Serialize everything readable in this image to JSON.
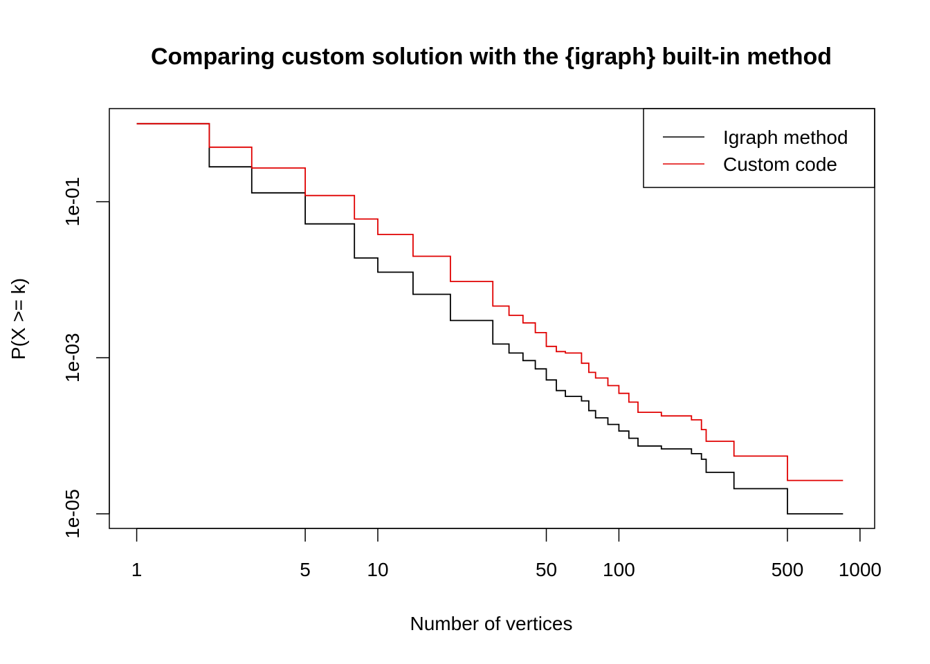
{
  "chart_data": {
    "type": "line",
    "title": "Comparing custom solution with the {igraph} built-in method",
    "xlabel": "Number of vertices",
    "ylabel": "P(X >= k)",
    "x_scale": "log10",
    "y_scale": "log10",
    "xlim": [
      0.77,
      1150
    ],
    "ylim": [
      6.5e-06,
      1.56
    ],
    "x_ticks": [
      1,
      5,
      10,
      50,
      100,
      500,
      1000
    ],
    "x_tick_labels": [
      "1",
      "5",
      "10",
      "50",
      "100",
      "500",
      "1000"
    ],
    "y_ticks": [
      0.1,
      0.001,
      1e-05
    ],
    "y_tick_labels": [
      "1e-01",
      "1e-03",
      "1e-05"
    ],
    "grid": false,
    "legend_position": "top-right",
    "series": [
      {
        "name": "Igraph method",
        "color": "#000000",
        "step": true,
        "x": [
          1,
          2,
          3,
          5,
          8,
          10,
          14,
          20,
          30,
          35,
          40,
          45,
          50,
          55,
          60,
          70,
          75,
          80,
          90,
          100,
          110,
          120,
          150,
          200,
          220,
          230,
          300,
          500,
          850
        ],
        "y": [
          1,
          0.28,
          0.13,
          0.052,
          0.019,
          0.0125,
          0.0065,
          0.003,
          0.0015,
          0.00115,
          0.00092,
          0.00072,
          0.00052,
          0.00038,
          0.00032,
          0.00028,
          0.00021,
          0.00017,
          0.00014,
          0.000115,
          9.3e-05,
          7.4e-05,
          6.8e-05,
          5.9e-05,
          5e-05,
          3.4e-05,
          2.1e-05,
          1e-05,
          1e-05
        ]
      },
      {
        "name": "Custom code",
        "color": "#e00000",
        "step": true,
        "x": [
          1,
          2,
          3,
          5,
          8,
          10,
          14,
          20,
          30,
          35,
          40,
          45,
          50,
          55,
          60,
          70,
          75,
          80,
          90,
          100,
          110,
          120,
          150,
          200,
          220,
          230,
          300,
          500,
          850
        ],
        "y": [
          1,
          0.5,
          0.27,
          0.12,
          0.06,
          0.038,
          0.02,
          0.0095,
          0.0046,
          0.0035,
          0.0028,
          0.0021,
          0.0014,
          0.0012,
          0.00115,
          0.00085,
          0.00065,
          0.00055,
          0.00044,
          0.00035,
          0.00027,
          0.0002,
          0.00018,
          0.00016,
          0.00012,
          8.5e-05,
          5.5e-05,
          2.68e-05,
          2.68e-05
        ]
      }
    ]
  }
}
